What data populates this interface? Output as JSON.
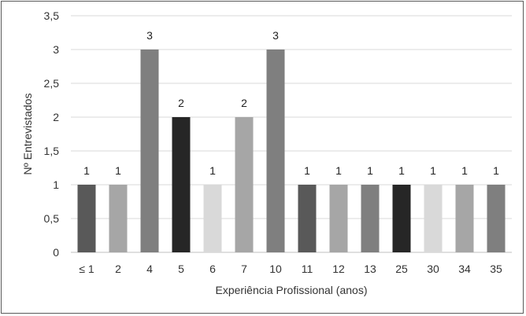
{
  "chart_data": {
    "type": "bar",
    "title": "",
    "xlabel": "Experiência Profissional (anos)",
    "ylabel": "Nº Entrevistados",
    "categories": [
      "≤ 1",
      "2",
      "4",
      "5",
      "6",
      "7",
      "10",
      "11",
      "12",
      "13",
      "25",
      "30",
      "34",
      "35"
    ],
    "values": [
      1,
      1,
      3,
      2,
      1,
      2,
      3,
      1,
      1,
      1,
      1,
      1,
      1,
      1
    ],
    "data_labels": [
      "1",
      "1",
      "3",
      "2",
      "1",
      "2",
      "3",
      "1",
      "1",
      "1",
      "1",
      "1",
      "1",
      "1"
    ],
    "colors": [
      "#595959",
      "#a6a6a6",
      "#7f7f7f",
      "#262626",
      "#d9d9d9",
      "#a6a6a6",
      "#7f7f7f",
      "#595959",
      "#a6a6a6",
      "#7f7f7f",
      "#262626",
      "#d9d9d9",
      "#a6a6a6",
      "#7f7f7f"
    ],
    "ylim": [
      0,
      3.5
    ],
    "yticks": [
      0,
      0.5,
      1,
      1.5,
      2,
      2.5,
      3,
      3.5
    ],
    "ytick_labels": [
      "0",
      "0,5",
      "1",
      "1,5",
      "2",
      "2,5",
      "3",
      "3,5"
    ],
    "grid": true,
    "legend": "none"
  }
}
